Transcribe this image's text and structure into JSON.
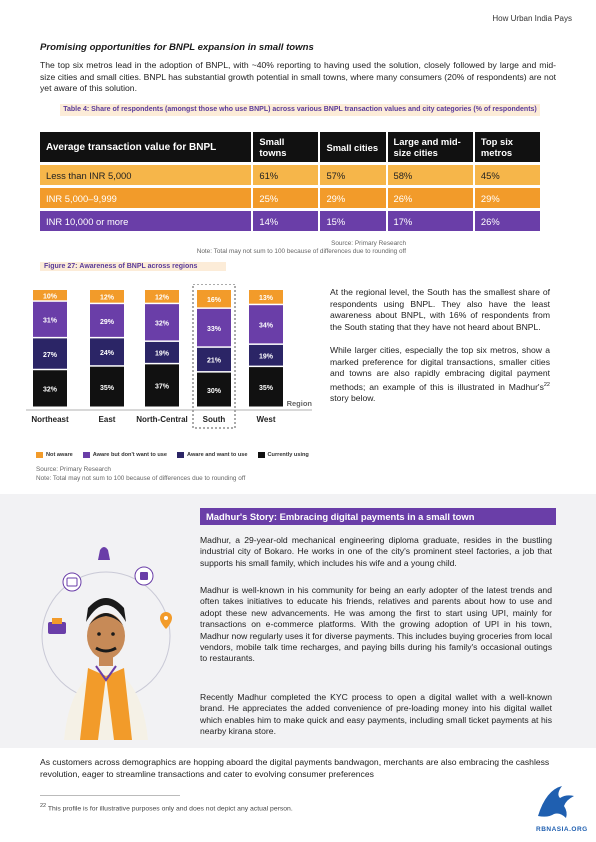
{
  "header": {
    "running_title": "How Urban India Pays"
  },
  "section": {
    "title": "Promising opportunities for BNPL expansion in small towns",
    "intro": "The top six metros lead in the adoption of BNPL, with ~40% reporting to having used the solution, closely followed by large and mid-size cities and small cities. BNPL has substantial growth potential in small towns, where many consumers (20% of respondents) are not yet aware of this solution."
  },
  "table": {
    "caption_prefix": "Table 4:",
    "caption": "Share of respondents (amongst those who use BNPL) across various BNPL transaction values and city categories (% of respondents)",
    "columns": [
      "Average transaction value for BNPL",
      "Small towns",
      "Small cities",
      "Large and mid-size cities",
      "Top six metros"
    ],
    "rows": [
      [
        "Less than INR 5,000",
        "61%",
        "57%",
        "58%",
        "45%"
      ],
      [
        "INR 5,000–9,999",
        "25%",
        "29%",
        "26%",
        "29%"
      ],
      [
        "INR 10,000 or more",
        "14%",
        "15%",
        "17%",
        "26%"
      ]
    ],
    "source": "Source: Primary Research",
    "note": "Note: Total may not sum to 100 because of differences due to rounding off"
  },
  "figure": {
    "caption_prefix": "Figure 27:",
    "caption": "Awareness of BNPL across regions",
    "source": "Source: Primary Research",
    "note": "Note: Total may not sum to 100 because of differences due to rounding off"
  },
  "chart_data": {
    "type": "bar",
    "stacked": true,
    "categories": [
      "Northeast",
      "East",
      "North-Central",
      "South",
      "West"
    ],
    "highlighted_category": "South",
    "xlabel": "Region",
    "series": [
      {
        "name": "Currently using",
        "color": "#111111",
        "values": [
          32,
          35,
          37,
          30,
          35
        ]
      },
      {
        "name": "Aware and want to use",
        "color": "#2b2566",
        "values": [
          27,
          24,
          19,
          21,
          19
        ]
      },
      {
        "name": "Aware but don't want to use",
        "color": "#6a3ea8",
        "values": [
          31,
          29,
          32,
          33,
          34
        ]
      },
      {
        "name": "Not aware",
        "color": "#f29b2a",
        "values": [
          10,
          12,
          12,
          16,
          13
        ]
      }
    ],
    "legend_order": [
      "Not aware",
      "Aware but don't want to use",
      "Aware and want to use",
      "Currently using"
    ],
    "legend_position": "bottom"
  },
  "regional_text": {
    "p1": "At the regional level, the South has the smallest share of respondents using BNPL. They also have the least awareness about BNPL, with 16% of respondents from the South stating that they have not heard about BNPL.",
    "p2_before": "While larger cities, especially the top six metros, show a marked preference for digital transactions, smaller cities and towns are also rapidly embracing digital payment methods; an example of this is illustrated in Madhur's",
    "p2_sup": "22",
    "p2_after": " story below."
  },
  "story": {
    "title": "Madhur's Story: Embracing digital payments in a small town",
    "p1": "Madhur, a 29-year-old mechanical engineering diploma graduate, resides in the bustling industrial city of Bokaro. He works in one of the city's prominent steel factories, a job that supports his small family, which includes his wife and a young child.",
    "p2": "Madhur is well-known in his community for being an early adopter of the latest trends and often takes initiatives to educate his friends, relatives and parents about how to use and adopt these new advancements. He was among the first to start using UPI, mainly for transactions on e-commerce platforms. With the growing adoption of UPI in his town, Madhur now regularly uses it for diverse payments. This includes buying groceries from local vendors, mobile talk time recharges, and paying bills during his family's occasional outings to restaurants.",
    "p3": "Recently Madhur completed the KYC process to open a digital wallet with a well-known brand. He appreciates the added convenience of pre-loading money into his digital wallet which enables him to make quick and easy payments, including small ticket payments at his nearby kirana store."
  },
  "closing": "As customers across demographics are hopping aboard the digital payments bandwagon, merchants are also embracing the cashless revolution, eager to streamline transactions and cater to evolving consumer preferences",
  "footnote": {
    "sup": "22",
    "text": " This profile is for illustrative purposes only and does not depict any actual person."
  },
  "logo": {
    "text": "RBNASIA.ORG"
  },
  "colors": {
    "purple": "#6a3ea8",
    "orange": "#f29b2a",
    "light_orange": "#f6b64a",
    "navy": "#2b2566",
    "black": "#111111",
    "blue_logo": "#1f5fb0"
  }
}
